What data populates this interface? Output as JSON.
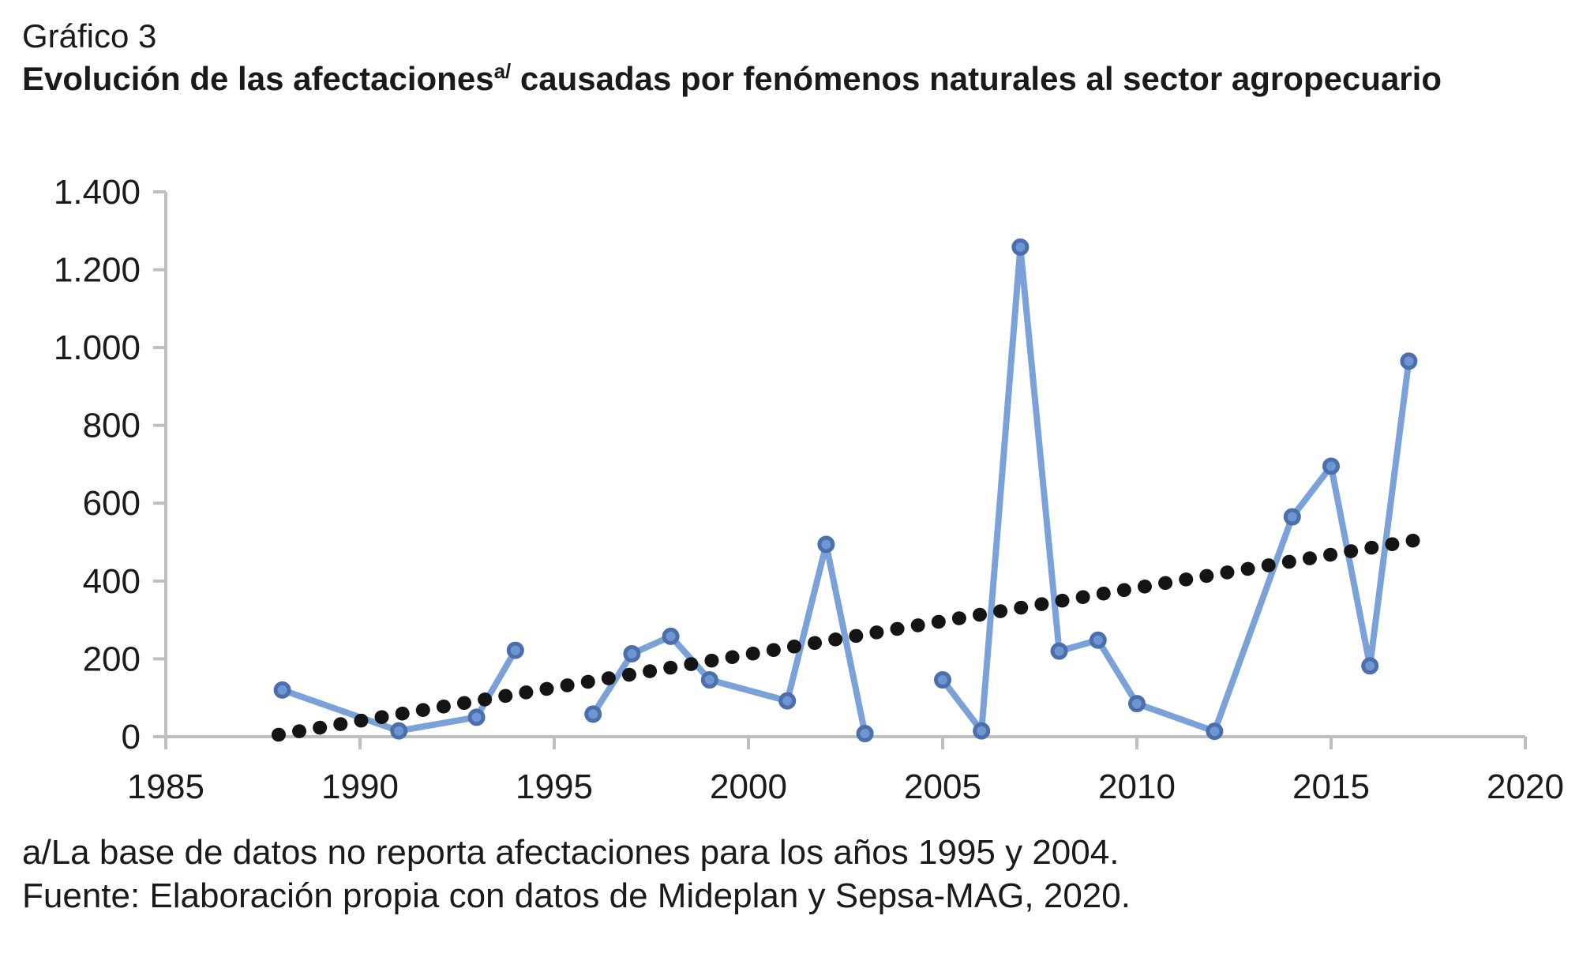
{
  "header": {
    "label": "Gráfico 3",
    "title": {
      "before_sup": "Evolución de las afectaciones",
      "sup": "a/",
      "after_sup": " causadas por fenómenos naturales al sector agropecuario"
    }
  },
  "footnotes": {
    "note": "a/La base de datos no reporta afectaciones para los años 1995 y 2004.",
    "source": "Fuente: Elaboración propia con datos de Mideplan y Sepsa-MAG, 2020."
  },
  "chart_data": {
    "type": "line",
    "title": "Evolución de las afectaciones causadas por fenómenos naturales al sector agropecuario",
    "xlabel": "",
    "ylabel": "",
    "xlim": [
      1985,
      2020
    ],
    "ylim": [
      0,
      1400
    ],
    "grid": false,
    "legend": "none",
    "x_ticks": [
      "1985",
      "1990",
      "1995",
      "2000",
      "2005",
      "2010",
      "2015",
      "2020"
    ],
    "x_tick_values": [
      1985,
      1990,
      1995,
      2000,
      2005,
      2010,
      2015,
      2020
    ],
    "y_ticks": [
      "0",
      "200",
      "400",
      "600",
      "800",
      "1.000",
      "1.200",
      "1.400"
    ],
    "y_tick_values": [
      0,
      200,
      400,
      600,
      800,
      1000,
      1200,
      1400
    ],
    "series": [
      {
        "name": "Afectaciones",
        "marker": "circle",
        "points": [
          {
            "year": 1988,
            "value": 120
          },
          {
            "year": 1991,
            "value": 15
          },
          {
            "year": 1993,
            "value": 50
          },
          {
            "year": 1994,
            "value": 222
          },
          {
            "year": 1996,
            "value": 58
          },
          {
            "year": 1997,
            "value": 213
          },
          {
            "year": 1998,
            "value": 258
          },
          {
            "year": 1999,
            "value": 146
          },
          {
            "year": 2001,
            "value": 92
          },
          {
            "year": 2002,
            "value": 494
          },
          {
            "year": 2003,
            "value": 8
          },
          {
            "year": 2005,
            "value": 146
          },
          {
            "year": 2006,
            "value": 15
          },
          {
            "year": 2007,
            "value": 1258
          },
          {
            "year": 2008,
            "value": 220
          },
          {
            "year": 2009,
            "value": 248
          },
          {
            "year": 2010,
            "value": 85
          },
          {
            "year": 2012,
            "value": 14
          },
          {
            "year": 2014,
            "value": 565
          },
          {
            "year": 2015,
            "value": 695
          },
          {
            "year": 2016,
            "value": 182
          },
          {
            "year": 2017,
            "value": 965
          }
        ],
        "gap_years": [
          1995,
          2004
        ]
      }
    ],
    "trend": {
      "style": "dotted",
      "start": {
        "year": 1987.9,
        "value": 5
      },
      "end": {
        "year": 2017.35,
        "value": 508
      }
    },
    "colors": {
      "line": "#7BA2D8",
      "marker_fill": "#6E96D2",
      "marker_stroke": "#4B6FAD",
      "trend": "#141414",
      "axis": "#BFBFBF",
      "text": "#1A1A1A"
    }
  }
}
